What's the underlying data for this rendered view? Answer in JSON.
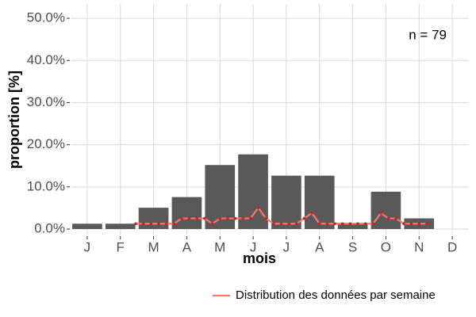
{
  "chart_data": {
    "type": "bar",
    "categories": [
      "J",
      "F",
      "M",
      "A",
      "M",
      "J",
      "J",
      "A",
      "S",
      "O",
      "N",
      "D"
    ],
    "values": [
      1.27,
      1.27,
      5.06,
      7.59,
      15.19,
      17.72,
      12.66,
      12.66,
      1.27,
      8.86,
      2.53,
      0
    ],
    "color": "#595959",
    "overlay": {
      "type": "line",
      "name": "Distribution des données par semaine",
      "color": "#f8766d",
      "point_color": "#cc1f1f",
      "values": [
        null,
        null,
        null,
        null,
        null,
        null,
        null,
        null,
        1.27,
        1.27,
        1.27,
        1.27,
        1.27,
        1.27,
        2.53,
        2.53,
        2.53,
        2.53,
        1.27,
        2.53,
        2.53,
        2.53,
        2.53,
        2.53,
        5.06,
        2.53,
        1.27,
        1.27,
        1.27,
        1.27,
        2.53,
        3.8,
        1.27,
        1.27,
        1.27,
        1.27,
        1.27,
        1.27,
        1.27,
        1.27,
        3.8,
        2.53,
        2.53,
        1.27,
        1.27,
        1.27,
        1.27,
        null,
        null,
        null,
        null,
        null
      ]
    },
    "xlabel": "mois",
    "ylabel": "proportion [%]",
    "annotation": "n = 79",
    "ylim": [
      -1.5,
      53.4
    ],
    "yticks": [
      {
        "value": 0,
        "label": "0.0%"
      },
      {
        "value": 10,
        "label": "10.0%"
      },
      {
        "value": 20,
        "label": "20.0%"
      },
      {
        "value": 30,
        "label": "30.0%"
      },
      {
        "value": 40,
        "label": "40.0%"
      },
      {
        "value": 50,
        "label": "50.0%"
      }
    ],
    "grid": true,
    "legend": "bottom"
  }
}
